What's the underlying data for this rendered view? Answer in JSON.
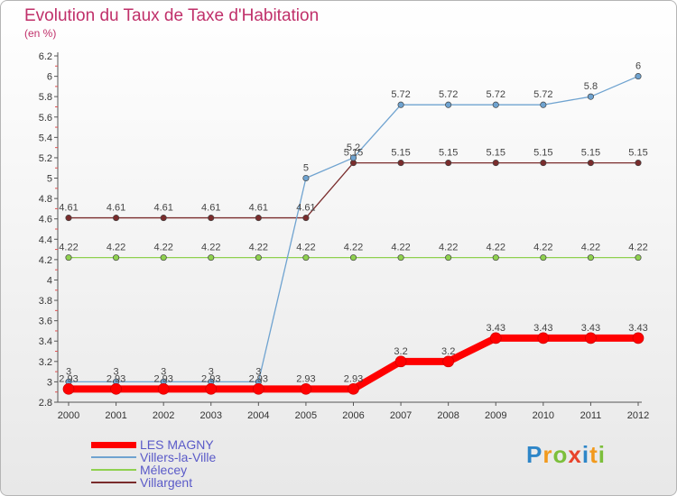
{
  "chart_data": {
    "type": "line",
    "title": "Evolution du Taux de Taxe d'Habitation",
    "unit_label": "(en %)",
    "x": [
      "2000",
      "2001",
      "2002",
      "2003",
      "2004",
      "2005",
      "2006",
      "2007",
      "2008",
      "2009",
      "2010",
      "2011",
      "2012"
    ],
    "ylim": [
      2.8,
      6.2
    ],
    "yticks": [
      "2.8",
      "3",
      "3.2",
      "3.4",
      "3.6",
      "3.8",
      "4",
      "4.2",
      "4.4",
      "4.6",
      "4.8",
      "5",
      "5.2",
      "5.4",
      "5.6",
      "5.8",
      "6",
      "6.2"
    ],
    "grid": false,
    "legend_position": "bottom-left",
    "series": [
      {
        "name": "LES MAGNY",
        "color": "#ff0000",
        "values": [
          2.93,
          2.93,
          2.93,
          2.93,
          2.93,
          2.93,
          2.93,
          3.2,
          3.2,
          3.43,
          3.43,
          3.43,
          3.43
        ],
        "labels": [
          "2.93",
          "2.93",
          "2.93",
          "2.93",
          "2.93",
          "2.93",
          "2.93",
          "3.2",
          "3.2",
          "3.43",
          "3.43",
          "3.43",
          "3.43"
        ]
      },
      {
        "name": "Villers-la-Ville",
        "color": "#6fa3d0",
        "values": [
          3,
          3,
          3,
          3,
          3,
          5,
          5.2,
          5.72,
          5.72,
          5.72,
          5.72,
          5.8,
          6
        ],
        "labels": [
          "3",
          "3",
          "3",
          "3",
          "3",
          "5",
          "5.2",
          "5.72",
          "5.72",
          "5.72",
          "5.72",
          "5.8",
          "6"
        ]
      },
      {
        "name": "Mélecey",
        "color": "#8fd14f",
        "values": [
          4.22,
          4.22,
          4.22,
          4.22,
          4.22,
          4.22,
          4.22,
          4.22,
          4.22,
          4.22,
          4.22,
          4.22,
          4.22
        ],
        "labels": [
          "4.22",
          "4.22",
          "4.22",
          "4.22",
          "4.22",
          "4.22",
          "4.22",
          "4.22",
          "4.22",
          "4.22",
          "4.22",
          "4.22",
          "4.22"
        ]
      },
      {
        "name": "Villargent",
        "color": "#7a2c2c",
        "values": [
          4.61,
          4.61,
          4.61,
          4.61,
          4.61,
          4.61,
          5.15,
          5.15,
          5.15,
          5.15,
          5.15,
          5.15,
          5.15
        ],
        "labels": [
          "4.61",
          "4.61",
          "4.61",
          "4.61",
          "4.61",
          "4.61",
          "5.15",
          "5.15",
          "5.15",
          "5.15",
          "5.15",
          "5.15",
          "5.15"
        ]
      }
    ]
  },
  "legend": {
    "items": [
      {
        "label": "LES MAGNY",
        "color": "#ff0000"
      },
      {
        "label": "Villers-la-Ville",
        "color": "#6fa3d0"
      },
      {
        "label": "Mélecey",
        "color": "#8fd14f"
      },
      {
        "label": "Villargent",
        "color": "#7a2c2c"
      }
    ],
    "text_color": "#5a5ac8"
  },
  "logo": {
    "letters": [
      "P",
      "r",
      "o",
      "x",
      "i",
      "t",
      "i"
    ],
    "colors": [
      "#2e86c8",
      "#f29a1d",
      "#7cbf3b",
      "#e8432b",
      "#2e86c8",
      "#f29a1d",
      "#7cbf3b"
    ]
  }
}
